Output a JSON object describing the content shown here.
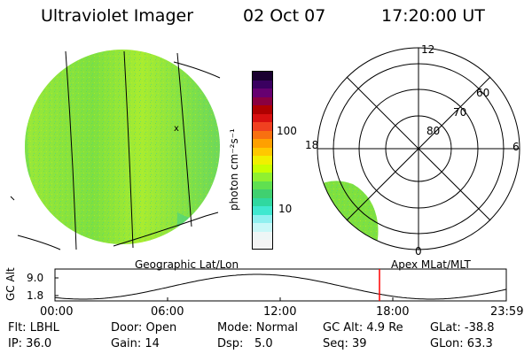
{
  "header": {
    "title": "Ultraviolet Imager",
    "date": "02 Oct 07",
    "time": "17:20:00 UT"
  },
  "colorbar": {
    "unit_label": "photon cm⁻²s⁻¹",
    "ticks": [
      "100",
      "10"
    ],
    "colors": [
      "#1a0030",
      "#3a0060",
      "#660070",
      "#8a0040",
      "#b00000",
      "#d81010",
      "#f04020",
      "#f87010",
      "#ffa000",
      "#ffc800",
      "#f0f000",
      "#c8ff00",
      "#90f030",
      "#60e050",
      "#40d070",
      "#30d8a0",
      "#40e8d0",
      "#90f0f0",
      "#c8f8f8",
      "#eef6f6",
      "#f4f4f4"
    ]
  },
  "polar_plot": {
    "mlt_labels": {
      "top": "12",
      "right": "6",
      "bottom": "0",
      "left": "18"
    },
    "lat_labels": [
      "60",
      "70",
      "80"
    ]
  },
  "panel_labels": {
    "left": "Geographic Lat/Lon",
    "right": "Apex MLat/MLT"
  },
  "timeline": {
    "y_axis_label": "GC Alt",
    "y_ticks": [
      "9.0",
      "1.8"
    ],
    "x_ticks": [
      "00:00",
      "06:00",
      "12:00",
      "18:00",
      "23:59"
    ],
    "current_time_marker": "17:20"
  },
  "footer": {
    "flt": "Flt: LBHL",
    "ip": "IP: 36.0",
    "door": "Door: Open",
    "gain": "Gain: 14",
    "mode": "Mode: Normal",
    "dsp_label": "Dsp:",
    "dsp_value": "5.0",
    "gc_alt": "GC Alt: 4.9 Re",
    "seq": "Seq: 39",
    "glat": "GLat: -38.8",
    "glon": "GLon:  63.3"
  },
  "colors": {
    "disk_base": "#7fe040",
    "disk_bright": "#b8f028",
    "marker": "#ff0000"
  }
}
